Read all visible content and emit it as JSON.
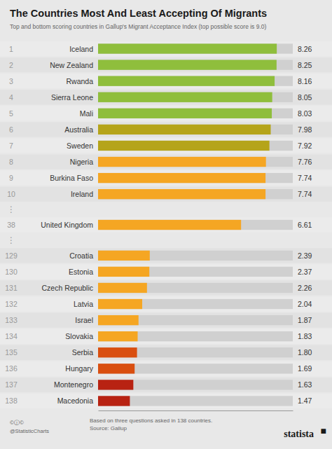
{
  "chart_data": {
    "type": "bar",
    "orientation": "horizontal",
    "title": "The Countries Most And Least Accepting Of Migrants",
    "subtitle": "Top and bottom scoring countries in Gallup's Migrant Acceptance Index (top possible score is 9.0)",
    "ranks": [
      1,
      2,
      3,
      4,
      5,
      6,
      7,
      8,
      9,
      10,
      38,
      129,
      130,
      131,
      132,
      133,
      134,
      135,
      136,
      137,
      138
    ],
    "categories": [
      "Iceland",
      "New Zealand",
      "Rwanda",
      "Sierra Leone",
      "Mali",
      "Australia",
      "Sweden",
      "Nigeria",
      "Burkina Faso",
      "Ireland",
      "United Kingdom",
      "Croatia",
      "Estonia",
      "Czech Republic",
      "Latvia",
      "Israel",
      "Slovakia",
      "Serbia",
      "Hungary",
      "Montenegro",
      "Macedonia"
    ],
    "values": [
      8.26,
      8.25,
      8.16,
      8.05,
      8.03,
      7.98,
      7.92,
      7.76,
      7.74,
      7.74,
      6.61,
      2.39,
      2.37,
      2.26,
      2.04,
      1.87,
      1.83,
      1.8,
      1.69,
      1.63,
      1.47
    ],
    "value_labels": [
      "8.26",
      "8.25",
      "8.16",
      "8.05",
      "8.03",
      "7.98",
      "7.92",
      "7.76",
      "7.74",
      "7.74",
      "6.61",
      "2.39",
      "2.37",
      "2.26",
      "2.04",
      "1.87",
      "1.83",
      "1.80",
      "1.69",
      "1.63",
      "1.47"
    ],
    "data_labels": true,
    "colors": [
      "#8fbe3c",
      "#8fbe3c",
      "#8fbe3c",
      "#8fbe3c",
      "#8fbe3c",
      "#b5a41a",
      "#b5a41a",
      "#f5a623",
      "#f5a623",
      "#f5a623",
      "#f5a623",
      "#f5a623",
      "#f5a623",
      "#f5a623",
      "#f5a623",
      "#f5a623",
      "#f5a623",
      "#d94f10",
      "#d94f10",
      "#b82212",
      "#b82212"
    ],
    "xlim": [
      0,
      9.0
    ],
    "tick_labels": false,
    "grid": false,
    "annotations": [
      "⋮",
      "⋮",
      "Based on three questions asked in 138 countries.\nSource: Gallup",
      "©ⓘ©",
      "@StatisticCharts",
      "statista",
      "■"
    ]
  }
}
